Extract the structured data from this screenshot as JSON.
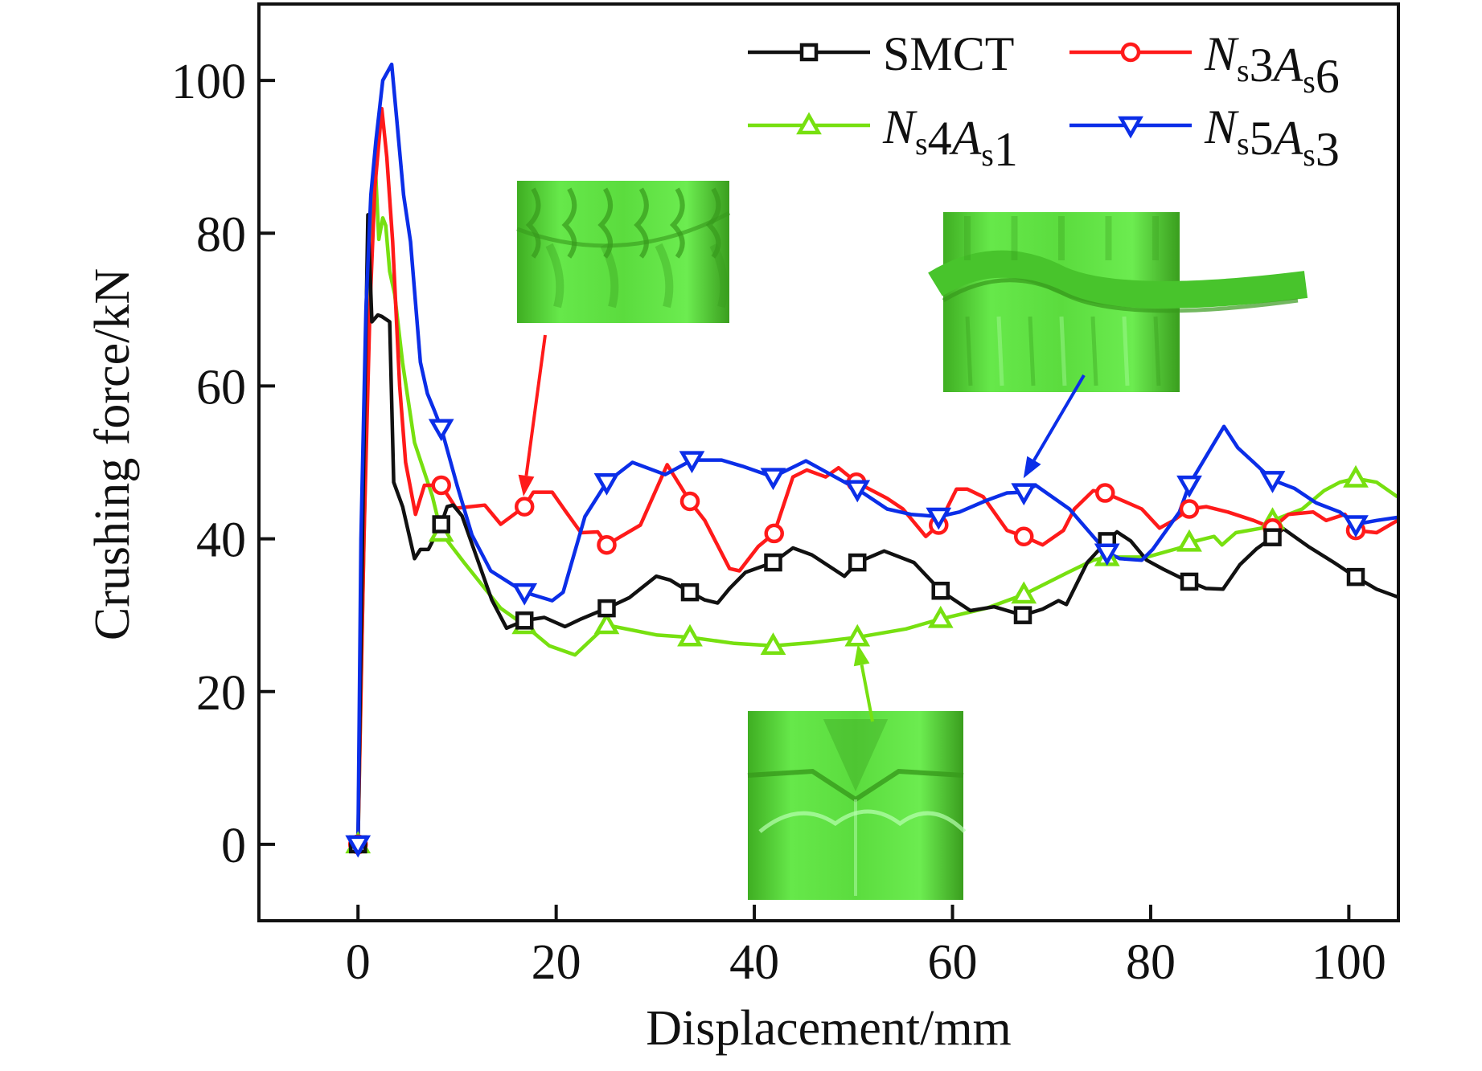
{
  "chart_data": {
    "type": "line",
    "title": "",
    "xlabel": "Displacement/mm",
    "ylabel": "Crushing force/kN",
    "xlim": [
      -10,
      105
    ],
    "ylim": [
      -10,
      110
    ],
    "xticks": [
      0,
      20,
      40,
      60,
      80,
      100
    ],
    "yticks": [
      0,
      20,
      40,
      60,
      80,
      100
    ],
    "xtick_labels": [
      "0",
      "20",
      "40",
      "60",
      "80",
      "100"
    ],
    "ytick_labels": [
      "0",
      "20",
      "40",
      "60",
      "80",
      "100"
    ],
    "grid": false,
    "legend": {
      "placement": "top-right",
      "columns": 2
    },
    "series": [
      {
        "name": "SMCT",
        "label_parts": [
          {
            "t": "SMCT",
            "style": "normal"
          }
        ],
        "color": "#111111",
        "marker": "square",
        "points": [
          [
            0,
            0
          ],
          [
            0.5,
            45
          ],
          [
            1.0,
            82.4
          ],
          [
            1.4,
            68.4
          ],
          [
            2.0,
            69.3
          ],
          [
            2.4,
            69.1
          ],
          [
            3.2,
            68.4
          ],
          [
            3.6,
            47.4
          ],
          [
            4.5,
            44.2
          ],
          [
            5.7,
            37.4
          ],
          [
            6.3,
            38.6
          ],
          [
            7.1,
            38.6
          ],
          [
            8.4,
            41.9
          ],
          [
            9.0,
            44.2
          ],
          [
            9.6,
            44.4
          ],
          [
            10.5,
            43.0
          ],
          [
            12.0,
            37.5
          ],
          [
            13.5,
            32.0
          ],
          [
            15.0,
            28.3
          ],
          [
            16.8,
            29.3
          ],
          [
            18.8,
            29.7
          ],
          [
            20.9,
            28.5
          ],
          [
            22.5,
            29.5
          ],
          [
            25.1,
            30.9
          ],
          [
            27.4,
            32.3
          ],
          [
            30.1,
            35.1
          ],
          [
            31.5,
            34.6
          ],
          [
            33.5,
            33.0
          ],
          [
            35.0,
            32.0
          ],
          [
            36.3,
            31.6
          ],
          [
            37.5,
            33.5
          ],
          [
            39.1,
            35.6
          ],
          [
            41.9,
            36.9
          ],
          [
            43.9,
            38.8
          ],
          [
            45.8,
            37.9
          ],
          [
            49.1,
            35.1
          ],
          [
            50.4,
            36.9
          ],
          [
            53.1,
            38.4
          ],
          [
            56.1,
            36.9
          ],
          [
            58.8,
            33.2
          ],
          [
            61.8,
            30.6
          ],
          [
            64.2,
            31.1
          ],
          [
            67.1,
            30.0
          ],
          [
            69.1,
            30.8
          ],
          [
            70.7,
            31.9
          ],
          [
            71.5,
            31.4
          ],
          [
            73.6,
            36.9
          ],
          [
            75.6,
            39.7
          ],
          [
            76.6,
            40.9
          ],
          [
            78.0,
            39.7
          ],
          [
            79.6,
            37.2
          ],
          [
            81.3,
            36.0
          ],
          [
            83.5,
            34.6
          ],
          [
            85.6,
            33.5
          ],
          [
            87.3,
            33.4
          ],
          [
            89.0,
            36.6
          ],
          [
            90.7,
            38.7
          ],
          [
            92.3,
            40.2
          ],
          [
            93.4,
            41.3
          ],
          [
            95.9,
            39.0
          ],
          [
            98.5,
            36.9
          ],
          [
            100.7,
            35.0
          ],
          [
            102.8,
            33.4
          ],
          [
            104.9,
            32.4
          ]
        ],
        "marker_x": [
          0,
          8.4,
          16.8,
          25.1,
          33.5,
          41.9,
          50.4,
          58.8,
          67.1,
          75.6,
          83.9,
          92.3,
          100.7
        ]
      },
      {
        "name": "Ns3As6",
        "label_parts": [
          {
            "t": "N",
            "style": "italic"
          },
          {
            "t": "s",
            "style": "sub"
          },
          {
            "t": "3",
            "style": "normal"
          },
          {
            "t": "A",
            "style": "italic"
          },
          {
            "t": "s",
            "style": "sub"
          },
          {
            "t": "6",
            "style": "normal"
          }
        ],
        "color": "#ff1a1a",
        "marker": "circle",
        "points": [
          [
            0,
            0
          ],
          [
            0.6,
            40
          ],
          [
            1.2,
            70
          ],
          [
            1.7,
            86
          ],
          [
            2.4,
            96.3
          ],
          [
            2.9,
            90
          ],
          [
            3.5,
            78.9
          ],
          [
            4.2,
            60
          ],
          [
            4.8,
            50
          ],
          [
            5.8,
            43.2
          ],
          [
            6.7,
            47.0
          ],
          [
            8.4,
            47.0
          ],
          [
            9.9,
            44.0
          ],
          [
            12.8,
            44.4
          ],
          [
            14.4,
            41.9
          ],
          [
            16.8,
            44.2
          ],
          [
            17.7,
            46.1
          ],
          [
            19.6,
            46.1
          ],
          [
            20.9,
            43.7
          ],
          [
            22.5,
            40.8
          ],
          [
            24.2,
            40.9
          ],
          [
            25.1,
            39.2
          ],
          [
            26.4,
            40.2
          ],
          [
            28.5,
            41.8
          ],
          [
            31.2,
            49.7
          ],
          [
            33.5,
            44.9
          ],
          [
            35.0,
            42.4
          ],
          [
            37.5,
            36.1
          ],
          [
            38.5,
            35.8
          ],
          [
            40.4,
            39.0
          ],
          [
            42.0,
            40.7
          ],
          [
            43.9,
            48.1
          ],
          [
            45.3,
            49.0
          ],
          [
            47.2,
            48.1
          ],
          [
            48.5,
            49.3
          ],
          [
            50.3,
            47.4
          ],
          [
            53.4,
            45.3
          ],
          [
            55.0,
            43.9
          ],
          [
            57.3,
            40.3
          ],
          [
            58.6,
            41.8
          ],
          [
            60.4,
            46.5
          ],
          [
            61.5,
            46.5
          ],
          [
            63.1,
            45.5
          ],
          [
            65.5,
            41.1
          ],
          [
            67.2,
            40.3
          ],
          [
            69.1,
            39.2
          ],
          [
            71.2,
            41.1
          ],
          [
            72.3,
            43.9
          ],
          [
            74.2,
            46.3
          ],
          [
            75.4,
            46.0
          ],
          [
            79.1,
            43.9
          ],
          [
            80.9,
            41.4
          ],
          [
            82.3,
            42.4
          ],
          [
            83.9,
            43.9
          ],
          [
            85.6,
            44.2
          ],
          [
            87.8,
            43.5
          ],
          [
            90.4,
            42.4
          ],
          [
            92.3,
            41.4
          ],
          [
            93.9,
            43.2
          ],
          [
            96.4,
            43.5
          ],
          [
            97.7,
            42.4
          ],
          [
            99.6,
            43.2
          ],
          [
            100.7,
            41.1
          ],
          [
            102.8,
            40.8
          ],
          [
            104.9,
            42.4
          ]
        ],
        "marker_x": [
          0,
          8.4,
          16.8,
          25.1,
          33.5,
          42.0,
          50.3,
          58.6,
          67.2,
          75.4,
          83.9,
          92.3,
          100.7
        ]
      },
      {
        "name": "Ns4As1",
        "label_parts": [
          {
            "t": "N",
            "style": "italic"
          },
          {
            "t": "s",
            "style": "sub"
          },
          {
            "t": "4",
            "style": "normal"
          },
          {
            "t": "A",
            "style": "italic"
          },
          {
            "t": "s",
            "style": "sub"
          },
          {
            "t": "1",
            "style": "normal"
          }
        ],
        "color": "#77e010",
        "marker": "triangle-up",
        "points": [
          [
            0,
            0
          ],
          [
            0.6,
            40
          ],
          [
            1.2,
            75
          ],
          [
            1.7,
            89.9
          ],
          [
            2.1,
            79.2
          ],
          [
            2.5,
            82.0
          ],
          [
            2.8,
            81.0
          ],
          [
            3.2,
            75.0
          ],
          [
            3.7,
            72.0
          ],
          [
            4.5,
            63.0
          ],
          [
            5.7,
            52.6
          ],
          [
            7.5,
            45.6
          ],
          [
            8.4,
            40.8
          ],
          [
            10.7,
            36.9
          ],
          [
            14.4,
            30.9
          ],
          [
            16.8,
            28.7
          ],
          [
            19.3,
            26.0
          ],
          [
            21.9,
            24.8
          ],
          [
            25.1,
            28.7
          ],
          [
            30.2,
            27.4
          ],
          [
            33.5,
            27.1
          ],
          [
            38.0,
            26.3
          ],
          [
            41.9,
            26.0
          ],
          [
            45.8,
            26.4
          ],
          [
            50.4,
            27.1
          ],
          [
            55.3,
            28.2
          ],
          [
            58.8,
            29.5
          ],
          [
            63.4,
            30.9
          ],
          [
            67.2,
            32.7
          ],
          [
            71.5,
            35.5
          ],
          [
            74.2,
            37.2
          ],
          [
            75.6,
            37.6
          ],
          [
            79.6,
            37.6
          ],
          [
            82.9,
            38.8
          ],
          [
            83.9,
            39.5
          ],
          [
            86.4,
            40.3
          ],
          [
            87.2,
            39.2
          ],
          [
            88.6,
            40.8
          ],
          [
            91.2,
            41.4
          ],
          [
            92.3,
            42.4
          ],
          [
            95.3,
            43.9
          ],
          [
            97.5,
            46.3
          ],
          [
            99.1,
            47.4
          ],
          [
            100.7,
            47.9
          ],
          [
            102.8,
            47.4
          ],
          [
            104.9,
            45.5
          ]
        ],
        "marker_x": [
          0,
          8.4,
          16.8,
          25.1,
          33.5,
          41.9,
          50.4,
          58.8,
          67.2,
          75.6,
          83.9,
          92.3,
          100.7
        ]
      },
      {
        "name": "Ns5As3",
        "label_parts": [
          {
            "t": "N",
            "style": "italic"
          },
          {
            "t": "s",
            "style": "sub"
          },
          {
            "t": "5",
            "style": "normal"
          },
          {
            "t": "A",
            "style": "italic"
          },
          {
            "t": "s",
            "style": "sub"
          },
          {
            "t": "3",
            "style": "normal"
          }
        ],
        "color": "#0b2ee8",
        "marker": "triangle-down",
        "points": [
          [
            0,
            0
          ],
          [
            0.3,
            40
          ],
          [
            0.8,
            70
          ],
          [
            1.3,
            85
          ],
          [
            1.8,
            92
          ],
          [
            2.5,
            100
          ],
          [
            3.4,
            102.1
          ],
          [
            3.9,
            95
          ],
          [
            4.6,
            85
          ],
          [
            5.3,
            78.9
          ],
          [
            6.3,
            63.1
          ],
          [
            7.0,
            59.0
          ],
          [
            7.7,
            56.8
          ],
          [
            8.4,
            54.5
          ],
          [
            10.0,
            47.0
          ],
          [
            11.5,
            40.5
          ],
          [
            13.4,
            35.8
          ],
          [
            16.8,
            33.0
          ],
          [
            19.6,
            31.9
          ],
          [
            20.7,
            33.0
          ],
          [
            22.9,
            42.9
          ],
          [
            25.1,
            47.4
          ],
          [
            27.7,
            50.0
          ],
          [
            31.0,
            48.4
          ],
          [
            33.7,
            50.3
          ],
          [
            36.7,
            50.3
          ],
          [
            38.8,
            49.5
          ],
          [
            41.9,
            48.1
          ],
          [
            45.2,
            50.2
          ],
          [
            50.4,
            46.5
          ],
          [
            53.4,
            43.9
          ],
          [
            55.8,
            43.2
          ],
          [
            58.6,
            42.9
          ],
          [
            60.7,
            43.5
          ],
          [
            63.4,
            45.0
          ],
          [
            65.5,
            46.0
          ],
          [
            67.2,
            46.1
          ],
          [
            68.4,
            47.0
          ],
          [
            71.8,
            43.9
          ],
          [
            74.2,
            40.3
          ],
          [
            75.6,
            38.2
          ],
          [
            76.9,
            37.4
          ],
          [
            79.1,
            37.2
          ],
          [
            80.2,
            38.6
          ],
          [
            82.9,
            43.5
          ],
          [
            83.9,
            47.1
          ],
          [
            85.6,
            50.8
          ],
          [
            87.4,
            54.7
          ],
          [
            88.8,
            51.9
          ],
          [
            90.4,
            50.0
          ],
          [
            92.3,
            47.7
          ],
          [
            94.5,
            46.6
          ],
          [
            96.7,
            44.7
          ],
          [
            99.1,
            43.5
          ],
          [
            100.7,
            41.9
          ],
          [
            102.8,
            42.4
          ],
          [
            104.9,
            42.8
          ]
        ],
        "marker_x": [
          0,
          8.4,
          16.8,
          25.1,
          33.7,
          41.9,
          50.4,
          58.6,
          67.2,
          75.6,
          83.9,
          92.3,
          100.7
        ]
      }
    ],
    "annotations": [
      {
        "name": "inset-ns3as6-deformation",
        "description": "Deformed tube (crushed top folds)",
        "color": "#5ee03c",
        "arrow_color": "#ff1a1a",
        "arrow_target": [
          16.7,
          44.5
        ]
      },
      {
        "name": "inset-ns5as3-deformation",
        "description": "Deformed tube (mid-height fold)",
        "color": "#5ee03c",
        "arrow_color": "#0b2ee8",
        "arrow_target": [
          67.0,
          47.5
        ]
      },
      {
        "name": "inset-ns4as1-deformation",
        "description": "Deformed tube (diamond-mode fold)",
        "color": "#5ee03c",
        "arrow_color": "#77e010",
        "arrow_target": [
          50.2,
          26.4
        ]
      }
    ]
  }
}
